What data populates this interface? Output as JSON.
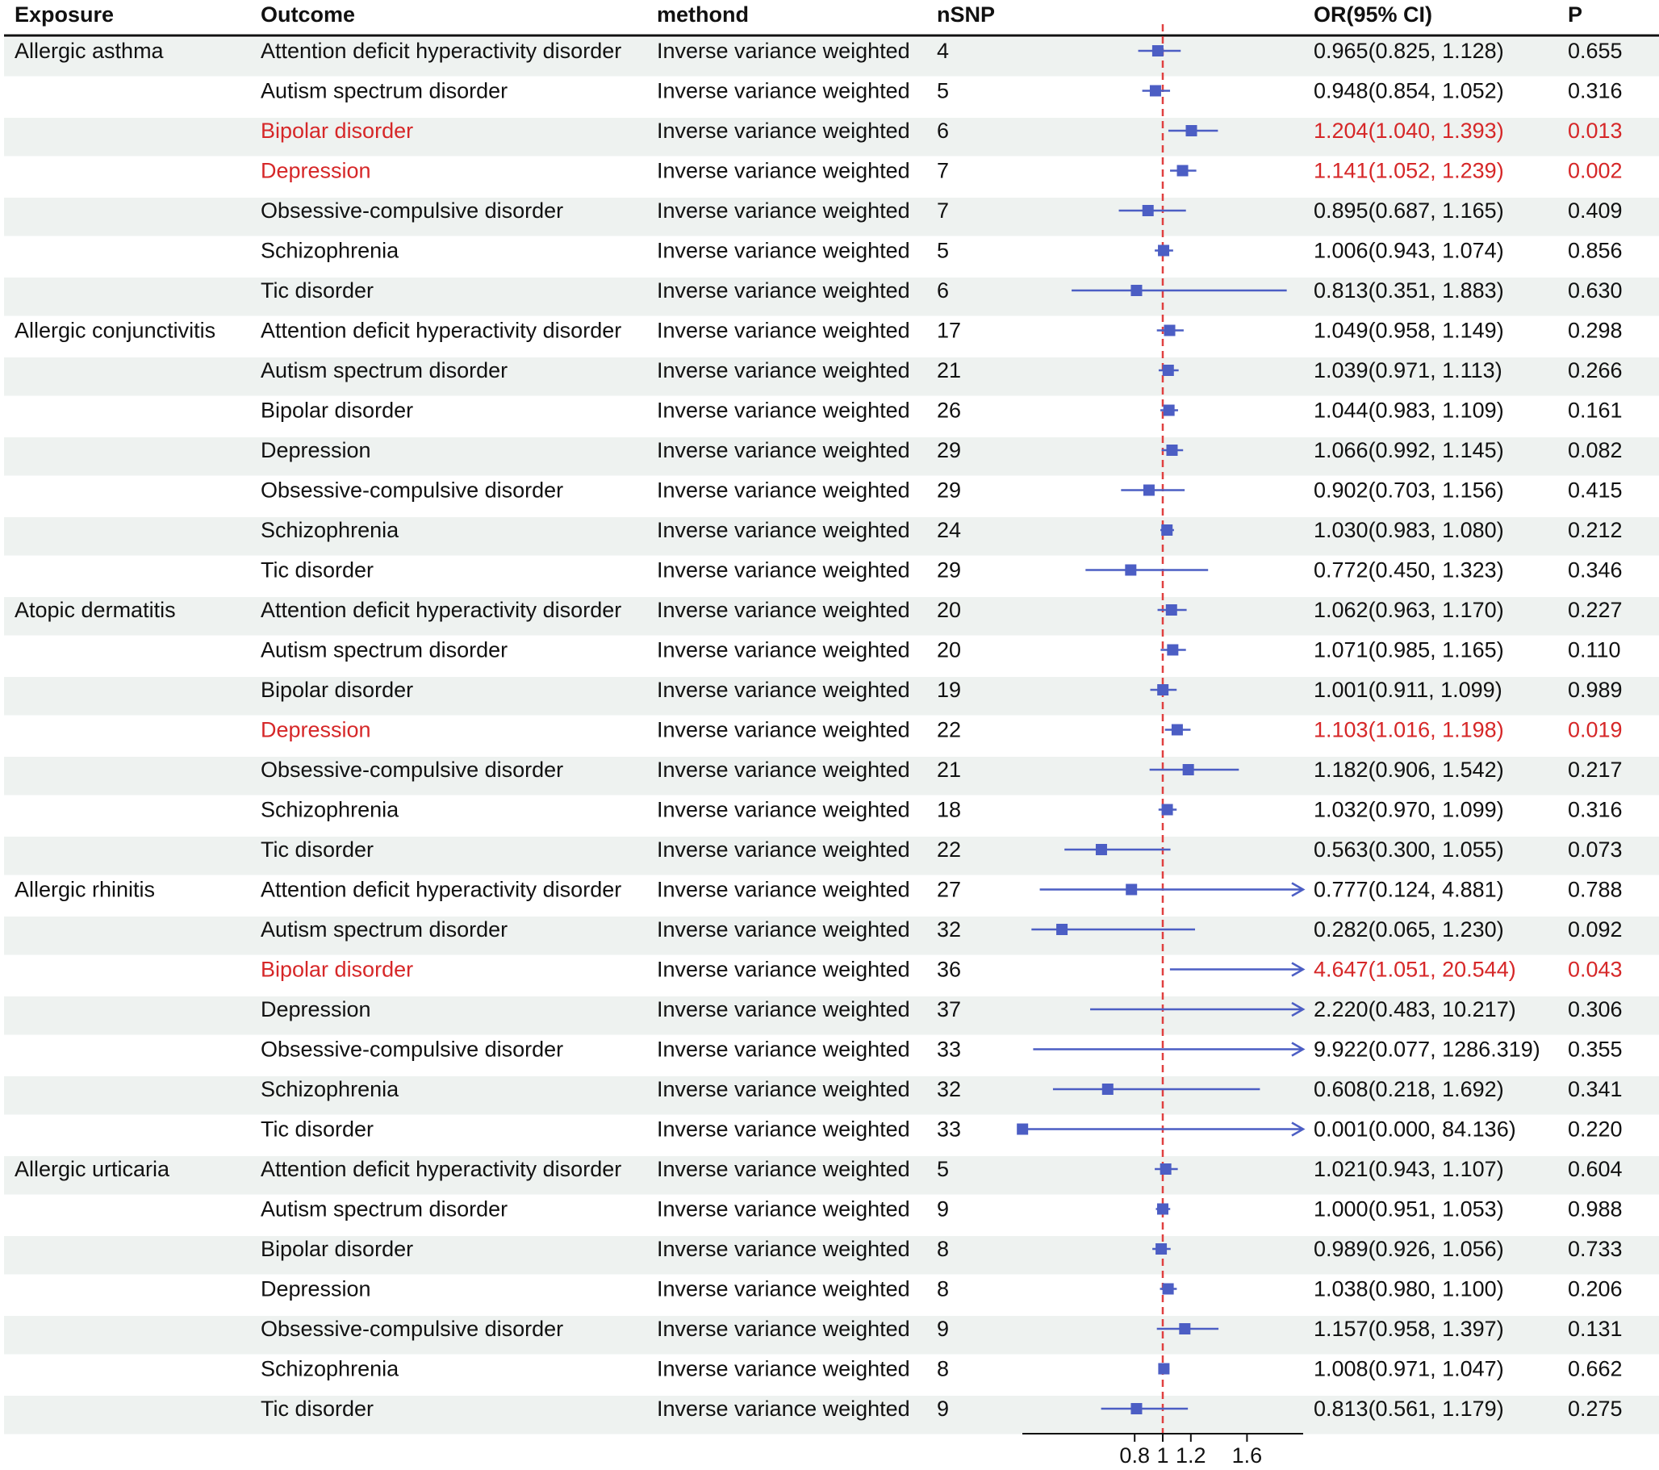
{
  "chart_data": {
    "type": "forest",
    "columns": [
      "Exposure",
      "Outcome",
      "methond",
      "nSNP",
      "OR(95% CI)",
      "P"
    ],
    "x_axis": {
      "ticks": [
        0.8,
        1,
        1.2,
        1.6
      ],
      "reference_line": 1,
      "xlim": [
        0,
        2.0
      ],
      "log_scale": false
    },
    "colors": {
      "normal_text": "#111111",
      "significant_text": "#d62728",
      "marker": "#4c5ec4",
      "reference_line": "#e04040",
      "zebra": "#eef2f0"
    },
    "rows": [
      {
        "exposure": "Allergic asthma",
        "outcome": "Attention deficit hyperactivity disorder",
        "method": "Inverse variance weighted",
        "nsnp": "4",
        "or": 0.965,
        "lower": 0.825,
        "upper": 1.128,
        "or_ci": "0.965(0.825, 1.128)",
        "p": "0.655",
        "significant": false
      },
      {
        "exposure": "",
        "outcome": "Autism spectrum disorder",
        "method": "Inverse variance weighted",
        "nsnp": "5",
        "or": 0.948,
        "lower": 0.854,
        "upper": 1.052,
        "or_ci": "0.948(0.854, 1.052)",
        "p": "0.316",
        "significant": false
      },
      {
        "exposure": "",
        "outcome": "Bipolar disorder",
        "method": "Inverse variance weighted",
        "nsnp": "6",
        "or": 1.204,
        "lower": 1.04,
        "upper": 1.393,
        "or_ci": "1.204(1.040, 1.393)",
        "p": "0.013",
        "significant": true
      },
      {
        "exposure": "",
        "outcome": "Depression",
        "method": "Inverse variance weighted",
        "nsnp": "7",
        "or": 1.141,
        "lower": 1.052,
        "upper": 1.239,
        "or_ci": "1.141(1.052, 1.239)",
        "p": "0.002",
        "significant": true
      },
      {
        "exposure": "",
        "outcome": "Obsessive-compulsive disorder",
        "method": "Inverse variance weighted",
        "nsnp": "7",
        "or": 0.895,
        "lower": 0.687,
        "upper": 1.165,
        "or_ci": "0.895(0.687, 1.165)",
        "p": "0.409",
        "significant": false
      },
      {
        "exposure": "",
        "outcome": "Schizophrenia",
        "method": "Inverse variance weighted",
        "nsnp": "5",
        "or": 1.006,
        "lower": 0.943,
        "upper": 1.074,
        "or_ci": "1.006(0.943, 1.074)",
        "p": "0.856",
        "significant": false
      },
      {
        "exposure": "",
        "outcome": "Tic disorder",
        "method": "Inverse variance weighted",
        "nsnp": "6",
        "or": 0.813,
        "lower": 0.351,
        "upper": 1.883,
        "or_ci": "0.813(0.351, 1.883)",
        "p": "0.630",
        "significant": false
      },
      {
        "exposure": "Allergic conjunctivitis",
        "outcome": "Attention deficit hyperactivity disorder",
        "method": "Inverse variance weighted",
        "nsnp": "17",
        "or": 1.049,
        "lower": 0.958,
        "upper": 1.149,
        "or_ci": "1.049(0.958, 1.149)",
        "p": "0.298",
        "significant": false
      },
      {
        "exposure": "",
        "outcome": "Autism spectrum disorder",
        "method": "Inverse variance weighted",
        "nsnp": "21",
        "or": 1.039,
        "lower": 0.971,
        "upper": 1.113,
        "or_ci": "1.039(0.971, 1.113)",
        "p": "0.266",
        "significant": false
      },
      {
        "exposure": "",
        "outcome": "Bipolar disorder",
        "method": "Inverse variance weighted",
        "nsnp": "26",
        "or": 1.044,
        "lower": 0.983,
        "upper": 1.109,
        "or_ci": "1.044(0.983, 1.109)",
        "p": "0.161",
        "significant": false
      },
      {
        "exposure": "",
        "outcome": "Depression",
        "method": "Inverse variance weighted",
        "nsnp": "29",
        "or": 1.066,
        "lower": 0.992,
        "upper": 1.145,
        "or_ci": "1.066(0.992, 1.145)",
        "p": "0.082",
        "significant": false
      },
      {
        "exposure": "",
        "outcome": "Obsessive-compulsive disorder",
        "method": "Inverse variance weighted",
        "nsnp": "29",
        "or": 0.902,
        "lower": 0.703,
        "upper": 1.156,
        "or_ci": "0.902(0.703, 1.156)",
        "p": "0.415",
        "significant": false
      },
      {
        "exposure": "",
        "outcome": "Schizophrenia",
        "method": "Inverse variance weighted",
        "nsnp": "24",
        "or": 1.03,
        "lower": 0.983,
        "upper": 1.08,
        "or_ci": "1.030(0.983, 1.080)",
        "p": "0.212",
        "significant": false
      },
      {
        "exposure": "",
        "outcome": "Tic disorder",
        "method": "Inverse variance weighted",
        "nsnp": "29",
        "or": 0.772,
        "lower": 0.45,
        "upper": 1.323,
        "or_ci": "0.772(0.450, 1.323)",
        "p": "0.346",
        "significant": false
      },
      {
        "exposure": "Atopic dermatitis",
        "outcome": "Attention deficit hyperactivity disorder",
        "method": "Inverse variance weighted",
        "nsnp": "20",
        "or": 1.062,
        "lower": 0.963,
        "upper": 1.17,
        "or_ci": "1.062(0.963, 1.170)",
        "p": "0.227",
        "significant": false
      },
      {
        "exposure": "",
        "outcome": "Autism spectrum disorder",
        "method": "Inverse variance weighted",
        "nsnp": "20",
        "or": 1.071,
        "lower": 0.985,
        "upper": 1.165,
        "or_ci": "1.071(0.985, 1.165)",
        "p": "0.110",
        "significant": false
      },
      {
        "exposure": "",
        "outcome": "Bipolar disorder",
        "method": "Inverse variance weighted",
        "nsnp": "19",
        "or": 1.001,
        "lower": 0.911,
        "upper": 1.099,
        "or_ci": "1.001(0.911, 1.099)",
        "p": "0.989",
        "significant": false
      },
      {
        "exposure": "",
        "outcome": "Depression",
        "method": "Inverse variance weighted",
        "nsnp": "22",
        "or": 1.103,
        "lower": 1.016,
        "upper": 1.198,
        "or_ci": "1.103(1.016, 1.198)",
        "p": "0.019",
        "significant": true
      },
      {
        "exposure": "",
        "outcome": "Obsessive-compulsive disorder",
        "method": "Inverse variance weighted",
        "nsnp": "21",
        "or": 1.182,
        "lower": 0.906,
        "upper": 1.542,
        "or_ci": "1.182(0.906, 1.542)",
        "p": "0.217",
        "significant": false
      },
      {
        "exposure": "",
        "outcome": "Schizophrenia",
        "method": "Inverse variance weighted",
        "nsnp": "18",
        "or": 1.032,
        "lower": 0.97,
        "upper": 1.099,
        "or_ci": "1.032(0.970, 1.099)",
        "p": "0.316",
        "significant": false
      },
      {
        "exposure": "",
        "outcome": "Tic disorder",
        "method": "Inverse variance weighted",
        "nsnp": "22",
        "or": 0.563,
        "lower": 0.3,
        "upper": 1.055,
        "or_ci": "0.563(0.300, 1.055)",
        "p": "0.073",
        "significant": false
      },
      {
        "exposure": "Allergic rhinitis",
        "outcome": "Attention deficit hyperactivity disorder",
        "method": "Inverse variance weighted",
        "nsnp": "27",
        "or": 0.777,
        "lower": 0.124,
        "upper": 4.881,
        "or_ci": "0.777(0.124, 4.881)",
        "p": "0.788",
        "significant": false
      },
      {
        "exposure": "",
        "outcome": "Autism spectrum disorder",
        "method": "Inverse variance weighted",
        "nsnp": "32",
        "or": 0.282,
        "lower": 0.065,
        "upper": 1.23,
        "or_ci": "0.282(0.065, 1.230)",
        "p": "0.092",
        "significant": false
      },
      {
        "exposure": "",
        "outcome": "Bipolar disorder",
        "method": "Inverse variance weighted",
        "nsnp": "36",
        "or": 4.647,
        "lower": 1.051,
        "upper": 20.544,
        "or_ci": "4.647(1.051, 20.544)",
        "p": "0.043",
        "significant": true
      },
      {
        "exposure": "",
        "outcome": "Depression",
        "method": "Inverse variance weighted",
        "nsnp": "37",
        "or": 2.22,
        "lower": 0.483,
        "upper": 10.217,
        "or_ci": "2.220(0.483, 10.217)",
        "p": "0.306",
        "significant": false
      },
      {
        "exposure": "",
        "outcome": "Obsessive-compulsive disorder",
        "method": "Inverse variance weighted",
        "nsnp": "33",
        "or": 9.922,
        "lower": 0.077,
        "upper": 1286.319,
        "or_ci": "9.922(0.077, 1286.319)",
        "p": "0.355",
        "significant": false
      },
      {
        "exposure": "",
        "outcome": "Schizophrenia",
        "method": "Inverse variance weighted",
        "nsnp": "32",
        "or": 0.608,
        "lower": 0.218,
        "upper": 1.692,
        "or_ci": "0.608(0.218, 1.692)",
        "p": "0.341",
        "significant": false
      },
      {
        "exposure": "",
        "outcome": "Tic disorder",
        "method": "Inverse variance weighted",
        "nsnp": "33",
        "or": 0.001,
        "lower": 0.0,
        "upper": 84.136,
        "or_ci": "0.001(0.000, 84.136)",
        "p": "0.220",
        "significant": false
      },
      {
        "exposure": "Allergic urticaria",
        "outcome": "Attention deficit hyperactivity disorder",
        "method": "Inverse variance weighted",
        "nsnp": "5",
        "or": 1.021,
        "lower": 0.943,
        "upper": 1.107,
        "or_ci": "1.021(0.943, 1.107)",
        "p": "0.604",
        "significant": false
      },
      {
        "exposure": "",
        "outcome": "Autism spectrum disorder",
        "method": "Inverse variance weighted",
        "nsnp": "9",
        "or": 1.0,
        "lower": 0.951,
        "upper": 1.053,
        "or_ci": "1.000(0.951, 1.053)",
        "p": "0.988",
        "significant": false
      },
      {
        "exposure": "",
        "outcome": "Bipolar disorder",
        "method": "Inverse variance weighted",
        "nsnp": "8",
        "or": 0.989,
        "lower": 0.926,
        "upper": 1.056,
        "or_ci": "0.989(0.926, 1.056)",
        "p": "0.733",
        "significant": false
      },
      {
        "exposure": "",
        "outcome": "Depression",
        "method": "Inverse variance weighted",
        "nsnp": "8",
        "or": 1.038,
        "lower": 0.98,
        "upper": 1.1,
        "or_ci": "1.038(0.980, 1.100)",
        "p": "0.206",
        "significant": false
      },
      {
        "exposure": "",
        "outcome": "Obsessive-compulsive disorder",
        "method": "Inverse variance weighted",
        "nsnp": "9",
        "or": 1.157,
        "lower": 0.958,
        "upper": 1.397,
        "or_ci": "1.157(0.958, 1.397)",
        "p": "0.131",
        "significant": false
      },
      {
        "exposure": "",
        "outcome": "Schizophrenia",
        "method": "Inverse variance weighted",
        "nsnp": "8",
        "or": 1.008,
        "lower": 0.971,
        "upper": 1.047,
        "or_ci": "1.008(0.971, 1.047)",
        "p": "0.662",
        "significant": false
      },
      {
        "exposure": "",
        "outcome": "Tic disorder",
        "method": "Inverse variance weighted",
        "nsnp": "9",
        "or": 0.813,
        "lower": 0.561,
        "upper": 1.179,
        "or_ci": "0.813(0.561, 1.179)",
        "p": "0.275",
        "significant": false
      }
    ]
  }
}
